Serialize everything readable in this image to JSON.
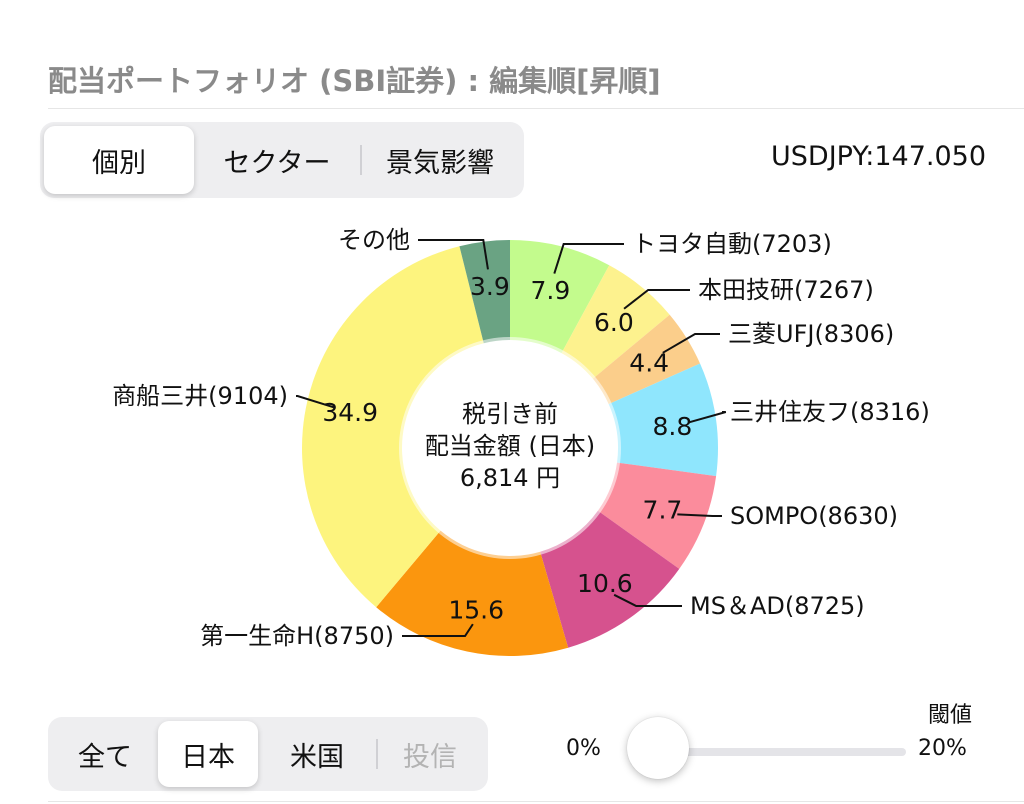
{
  "header": {
    "title": "配当ポートフォリオ (SBI証券) : 編集順[昇順]"
  },
  "view_tabs": [
    {
      "label": "個別",
      "active": true
    },
    {
      "label": "セクター",
      "active": false
    },
    {
      "label": "景気影響",
      "active": false
    }
  ],
  "fx_rate": "USDJPY:147.050",
  "chart_data": {
    "type": "pie",
    "donut": true,
    "center_text": [
      "税引き前",
      "配当金額 (日本)",
      "6,814 円"
    ],
    "slices": [
      {
        "label": "トヨタ自動(7203)",
        "value": 7.9,
        "color": "#c3fb8d"
      },
      {
        "label": "本田技研(7267)",
        "value": 6.0,
        "color": "#fdf28e"
      },
      {
        "label": "三菱UFJ(8306)",
        "value": 4.4,
        "color": "#fbce8b"
      },
      {
        "label": "三井住友フ(8316)",
        "value": 8.8,
        "color": "#8fe6fd"
      },
      {
        "label": "SOMPO(8630)",
        "value": 7.7,
        "color": "#fb8c9c"
      },
      {
        "label": "MS＆AD(8725)",
        "value": 10.6,
        "color": "#d6528e"
      },
      {
        "label": "第一生命H(8750)",
        "value": 15.6,
        "color": "#fb960e"
      },
      {
        "label": "商船三井(9104)",
        "value": 34.9,
        "color": "#fdf47e"
      },
      {
        "label": "その他",
        "value": 3.9,
        "color": "#6aa383"
      }
    ]
  },
  "market_tabs": [
    {
      "label": "全て",
      "active": false,
      "disabled": false
    },
    {
      "label": "日本",
      "active": true,
      "disabled": false
    },
    {
      "label": "米国",
      "active": false,
      "disabled": false
    },
    {
      "label": "投信",
      "active": false,
      "disabled": true
    }
  ],
  "threshold": {
    "label": "閾値",
    "min_label": "0%",
    "max_label": "20%",
    "value": 0.1
  }
}
